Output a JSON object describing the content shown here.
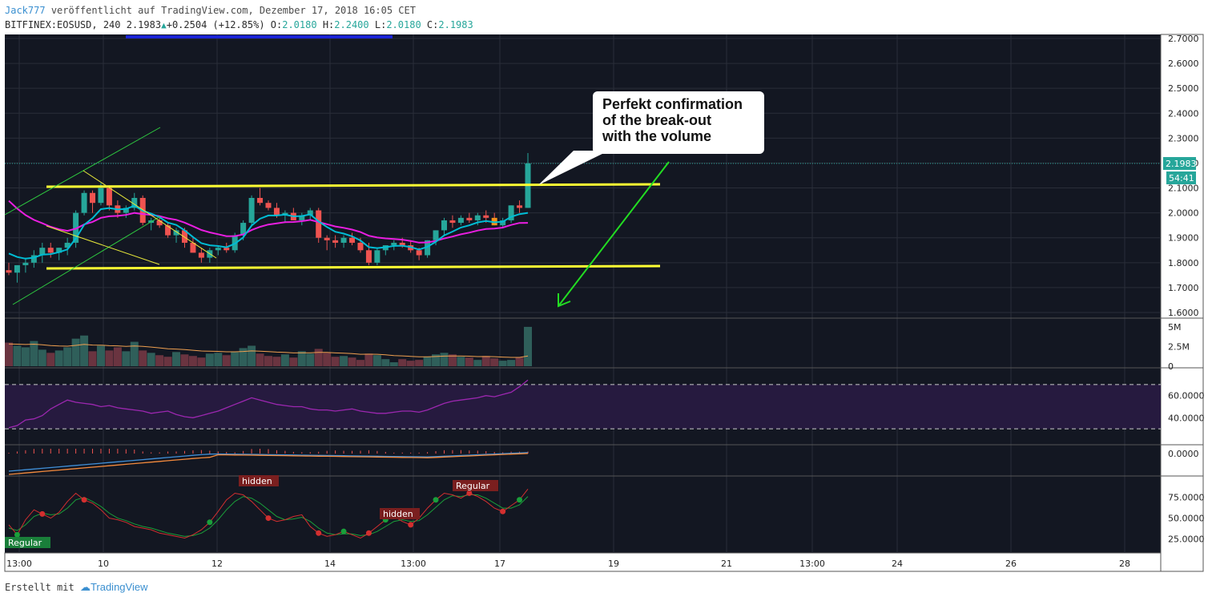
{
  "header": {
    "author": "Jack777",
    "published": "veröffentlicht auf TradingView.com, Dezember 17, 2018 16:05 CET",
    "symbol": "BITFINEX:EOSUSD, 240",
    "last": "2.1983",
    "change": "+0.2504 (+12.85%)",
    "open_label": "O:",
    "open": "2.0180",
    "high_label": "H:",
    "high": "2.2400",
    "low_label": "L:",
    "low": "2.0180",
    "close_label": "C:",
    "close": "2.1983"
  },
  "callout": {
    "line1": "Perfekt confirmation",
    "line2": "of the break-out",
    "line3": "with the volume"
  },
  "footer": {
    "created_with": "Erstellt mit",
    "brand": "TradingView"
  },
  "colors": {
    "background": "#131722",
    "grid": "#2a2e39",
    "up": "#26a69a",
    "down": "#ef5350",
    "highlight_up": "#f7931a",
    "levels": "#ffff33",
    "arrow": "#22dd22",
    "ema_fast": "#00bcd4",
    "ema_slow": "#e91ee0",
    "rsi": "#9c27b0"
  },
  "chart_data": {
    "type": "candlestick",
    "price_axis": {
      "ticks": [
        "2.7000",
        "2.6000",
        "2.5000",
        "2.4000",
        "2.3000",
        "2.2000",
        "2.1000",
        "2.0000",
        "1.9000",
        "1.8000",
        "1.7000",
        "1.6000"
      ],
      "range": [
        1.6,
        2.7
      ],
      "last_price_label": "2.1983",
      "countdown_label": "54:41"
    },
    "time_axis": {
      "ticks": [
        "13:00",
        "10",
        "12",
        "14",
        "13:00",
        "17",
        "19",
        "21",
        "13:00",
        "24",
        "26",
        "28"
      ]
    },
    "candles_ohlc": [
      [
        1.77,
        1.8,
        1.75,
        1.76
      ],
      [
        1.76,
        1.79,
        1.72,
        1.79
      ],
      [
        1.79,
        1.82,
        1.76,
        1.8
      ],
      [
        1.8,
        1.85,
        1.78,
        1.83
      ],
      [
        1.83,
        1.88,
        1.8,
        1.86
      ],
      [
        1.86,
        1.88,
        1.82,
        1.84
      ],
      [
        1.84,
        1.86,
        1.81,
        1.86
      ],
      [
        1.86,
        1.9,
        1.83,
        1.88
      ],
      [
        1.88,
        2.01,
        1.86,
        2.0
      ],
      [
        2.0,
        2.09,
        1.99,
        2.08
      ],
      [
        2.08,
        2.09,
        2.0,
        2.04
      ],
      [
        2.04,
        2.12,
        2.03,
        2.1
      ],
      [
        2.1,
        2.11,
        2.01,
        2.03
      ],
      [
        2.03,
        2.05,
        1.98,
        2.0
      ],
      [
        2.0,
        2.03,
        1.98,
        2.02
      ],
      [
        2.02,
        2.08,
        2.01,
        2.06
      ],
      [
        2.06,
        2.07,
        1.95,
        1.96
      ],
      [
        1.96,
        1.98,
        1.93,
        1.97
      ],
      [
        1.97,
        1.98,
        1.94,
        1.95
      ],
      [
        1.95,
        1.96,
        1.9,
        1.91
      ],
      [
        1.91,
        1.94,
        1.88,
        1.93
      ],
      [
        1.93,
        1.94,
        1.86,
        1.88
      ],
      [
        1.88,
        1.9,
        1.84,
        1.84
      ],
      [
        1.84,
        1.86,
        1.8,
        1.82
      ],
      [
        1.82,
        1.86,
        1.8,
        1.85
      ],
      [
        1.85,
        1.87,
        1.83,
        1.86
      ],
      [
        1.86,
        1.88,
        1.84,
        1.85
      ],
      [
        1.85,
        1.92,
        1.84,
        1.91
      ],
      [
        1.91,
        1.97,
        1.89,
        1.96
      ],
      [
        1.96,
        2.07,
        1.95,
        2.06
      ],
      [
        2.06,
        2.1,
        2.03,
        2.04
      ],
      [
        2.04,
        2.05,
        2.01,
        2.02
      ],
      [
        2.02,
        2.04,
        1.98,
        1.99
      ],
      [
        1.99,
        2.01,
        1.96,
        2.0
      ],
      [
        2.0,
        2.02,
        1.97,
        1.97
      ],
      [
        1.97,
        2.0,
        1.95,
        1.99
      ],
      [
        1.99,
        2.02,
        1.97,
        2.01
      ],
      [
        2.01,
        2.02,
        1.88,
        1.9
      ],
      [
        1.9,
        1.91,
        1.85,
        1.89
      ],
      [
        1.89,
        1.91,
        1.86,
        1.88
      ],
      [
        1.88,
        1.91,
        1.86,
        1.9
      ],
      [
        1.9,
        1.92,
        1.87,
        1.88
      ],
      [
        1.88,
        1.9,
        1.84,
        1.85
      ],
      [
        1.85,
        1.88,
        1.79,
        1.8
      ],
      [
        1.8,
        1.86,
        1.79,
        1.85
      ],
      [
        1.85,
        1.87,
        1.83,
        1.87
      ],
      [
        1.87,
        1.89,
        1.85,
        1.88
      ],
      [
        1.88,
        1.9,
        1.86,
        1.87
      ],
      [
        1.87,
        1.89,
        1.84,
        1.85
      ],
      [
        1.85,
        1.86,
        1.81,
        1.83
      ],
      [
        1.83,
        1.89,
        1.82,
        1.89
      ],
      [
        1.89,
        1.93,
        1.87,
        1.93
      ],
      [
        1.93,
        1.98,
        1.91,
        1.97
      ],
      [
        1.97,
        1.99,
        1.94,
        1.96
      ],
      [
        1.96,
        1.99,
        1.95,
        1.98
      ],
      [
        1.98,
        2.0,
        1.96,
        1.97
      ],
      [
        1.97,
        2.0,
        1.95,
        1.99
      ],
      [
        1.99,
        2.01,
        1.96,
        1.98
      ],
      [
        1.98,
        2.0,
        1.95,
        1.95
      ],
      [
        1.95,
        1.98,
        1.94,
        1.97
      ],
      [
        1.97,
        2.03,
        1.96,
        2.03
      ],
      [
        2.03,
        2.05,
        2.0,
        2.02
      ],
      [
        2.02,
        2.24,
        2.02,
        2.1983
      ]
    ],
    "volume_axis": {
      "ticks": [
        "5M",
        "2.5M",
        "0"
      ]
    },
    "volumes_m": [
      3.0,
      2.6,
      2.4,
      3.2,
      2.1,
      1.7,
      2.0,
      2.4,
      3.5,
      3.9,
      1.9,
      2.6,
      2.0,
      2.4,
      1.9,
      3.1,
      2.0,
      1.7,
      1.4,
      1.2,
      1.8,
      1.5,
      1.3,
      1.1,
      1.6,
      1.7,
      1.4,
      1.8,
      2.3,
      2.6,
      1.6,
      1.3,
      1.2,
      1.5,
      1.1,
      1.9,
      1.6,
      2.2,
      1.7,
      1.2,
      1.3,
      1.1,
      0.8,
      1.6,
      1.4,
      0.9,
      0.5,
      0.9,
      0.7,
      0.8,
      1.2,
      1.5,
      1.7,
      1.5,
      1.2,
      1.1,
      0.8,
      1.3,
      1.0,
      0.7,
      0.8,
      1.1,
      5.0
    ],
    "rsi_axis": {
      "ticks": [
        "60.0000",
        "40.0000"
      ],
      "upper_band": 70,
      "lower_band": 30
    },
    "rsi": [
      31,
      33,
      38,
      39,
      42,
      48,
      52,
      56,
      54,
      53,
      52,
      50,
      51,
      49,
      48,
      47,
      46,
      44,
      45,
      46,
      43,
      41,
      40,
      42,
      44,
      46,
      49,
      52,
      55,
      58,
      56,
      54,
      52,
      51,
      50,
      50,
      48,
      47,
      47,
      46,
      47,
      48,
      46,
      45,
      44,
      44,
      45,
      46,
      46,
      45,
      47,
      50,
      53,
      55,
      56,
      57,
      58,
      60,
      59,
      61,
      63,
      68,
      74
    ],
    "macd_axis": {
      "ticks": [
        "0.0000"
      ]
    },
    "stoch_axis": {
      "ticks": [
        "75.0000",
        "50.0000",
        "25.0000"
      ]
    },
    "stoch_k": [
      42,
      30,
      48,
      60,
      55,
      50,
      57,
      70,
      80,
      72,
      68,
      60,
      50,
      48,
      45,
      40,
      38,
      36,
      32,
      30,
      28,
      26,
      30,
      36,
      45,
      58,
      72,
      80,
      78,
      70,
      60,
      50,
      46,
      48,
      52,
      54,
      40,
      32,
      28,
      30,
      34,
      30,
      26,
      32,
      40,
      48,
      52,
      46,
      42,
      50,
      62,
      72,
      80,
      78,
      74,
      80,
      76,
      70,
      62,
      58,
      65,
      72,
      85
    ],
    "stoch_d": [
      38,
      35,
      42,
      52,
      56,
      54,
      55,
      62,
      72,
      75,
      70,
      64,
      56,
      50,
      47,
      43,
      40,
      38,
      35,
      32,
      30,
      28,
      29,
      32,
      38,
      48,
      60,
      70,
      76,
      74,
      68,
      60,
      52,
      48,
      49,
      51,
      46,
      38,
      32,
      30,
      31,
      31,
      29,
      30,
      34,
      40,
      46,
      48,
      46,
      47,
      54,
      63,
      72,
      77,
      76,
      78,
      78,
      74,
      68,
      62,
      62,
      66,
      76
    ],
    "stoch_labels": [
      "Regular",
      "hidden",
      "hidden",
      "Regular"
    ],
    "support_level": 1.78,
    "resistance_level": 2.105
  }
}
